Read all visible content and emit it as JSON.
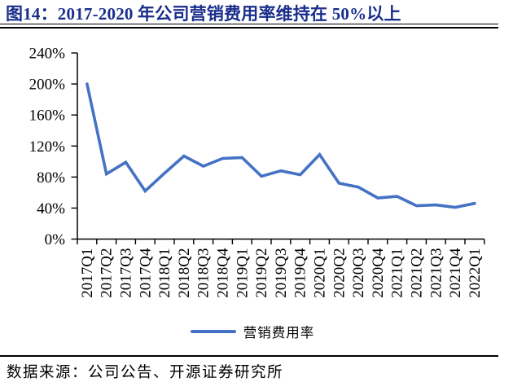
{
  "header": {
    "title": "图14：2017-2020 年公司营销费用率维持在 50%以上"
  },
  "legend": {
    "label": "营销费用率"
  },
  "footer": {
    "source": "数据来源：公司公告、开源证券研究所"
  },
  "colors": {
    "line": "#4472C4",
    "title": "#1a2e8c",
    "axis": "#000000",
    "text": "#000000"
  },
  "chart_data": {
    "type": "line",
    "title": "图14：2017-2020 年公司营销费用率维持在 50%以上",
    "categories": [
      "2017Q1",
      "2017Q2",
      "2017Q3",
      "2017Q4",
      "2018Q1",
      "2018Q2",
      "2018Q3",
      "2018Q4",
      "2019Q1",
      "2019Q2",
      "2019Q3",
      "2019Q4",
      "2020Q1",
      "2020Q2",
      "2020Q3",
      "2020Q4",
      "2021Q1",
      "2021Q2",
      "2021Q3",
      "2021Q4",
      "2022Q1"
    ],
    "series": [
      {
        "name": "营销费用率",
        "values": [
          200,
          84,
          99,
          62,
          85,
          107,
          94,
          104,
          105,
          81,
          88,
          83,
          109,
          72,
          67,
          53,
          55,
          43,
          44,
          41,
          46
        ]
      }
    ],
    "xlabel": "",
    "ylabel": "",
    "ylim": [
      0,
      240
    ],
    "ytick_step": 40,
    "ytick_labels": [
      "0%",
      "40%",
      "80%",
      "120%",
      "160%",
      "200%",
      "240%"
    ],
    "grid": false,
    "legend_position": "bottom"
  }
}
